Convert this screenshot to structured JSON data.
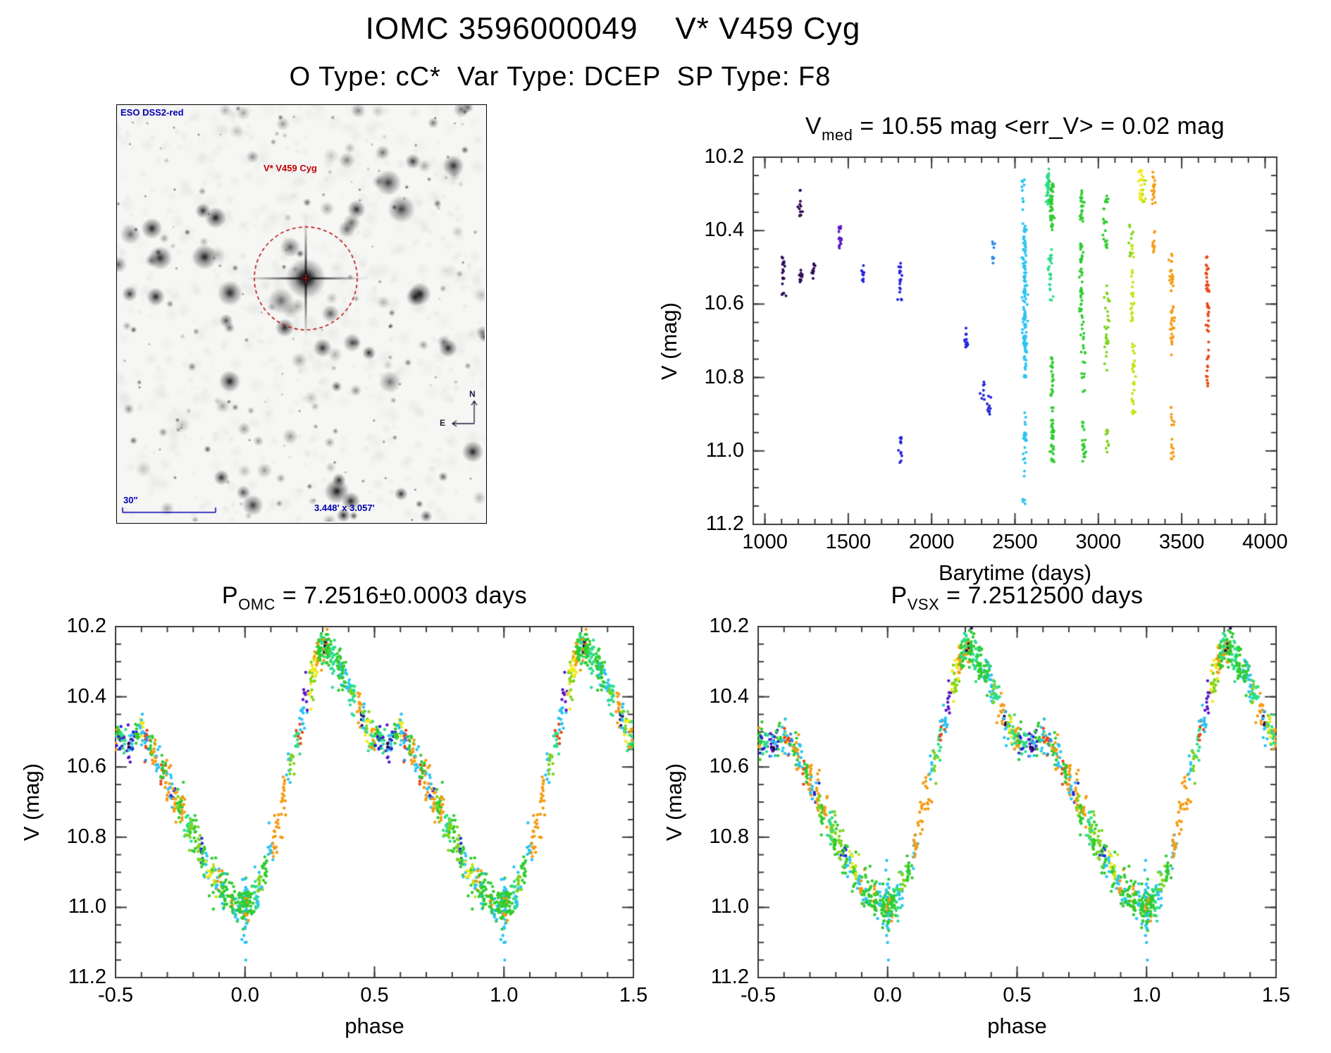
{
  "page": {
    "title": "IOMC 3596000049    V* V459 Cyg",
    "subtitle": "O Type: cC*  Var Type: DCEP  SP Type: F8",
    "background": "#FFFFFF",
    "text_color": "#000000"
  },
  "starfield": {
    "survey_label": "ESO DSS2-red",
    "target_label": "V* V459 Cyg",
    "scale_label": "30\"",
    "fov_label": "3.448' x 3.057'",
    "compass_north": "N",
    "compass_east": "E",
    "label_color": "#0000B0",
    "marker_color": "#BB1111"
  },
  "palette": [
    "#2E0B54",
    "#5A16C8",
    "#2424DC",
    "#2E8BE6",
    "#2BC4F0",
    "#2EDD8C",
    "#2FCC30",
    "#7ED41C",
    "#C3E316",
    "#F2EA1C",
    "#F59B12",
    "#EB4713"
  ],
  "chart_data": [
    {
      "id": "timeseries",
      "type": "scatter",
      "title_parts": [
        [
          "V",
          "n"
        ],
        [
          "med",
          "s"
        ],
        [
          " = 10.55 mag <err_V> = 0.02 mag",
          "n"
        ]
      ],
      "xlabel": "Barytime (days)",
      "ylabel": "V (mag)",
      "xlim": [
        930,
        4070
      ],
      "ylim": [
        10.2,
        11.2
      ],
      "y_inverted_mag_axis": true,
      "xticks": [
        1000,
        1500,
        2000,
        2500,
        3000,
        3500,
        4000
      ],
      "xtick_labels": [
        "1000",
        "1500",
        "2000",
        "2500",
        "3000",
        "3500",
        "4000"
      ],
      "xminor": 100,
      "yticks": [
        10.2,
        10.4,
        10.6,
        10.8,
        11.0,
        11.2
      ],
      "ytick_labels": [
        "10.2",
        "10.4",
        "10.6",
        "10.8",
        "11.0",
        "11.2"
      ],
      "yminor": 0.05,
      "seed": 7,
      "clusters": [
        [
          1110,
          10.47,
          10.58,
          0,
          22
        ],
        [
          1210,
          10.29,
          10.36,
          0,
          12
        ],
        [
          1213,
          10.5,
          10.54,
          0,
          10
        ],
        [
          1290,
          10.49,
          10.54,
          0,
          10
        ],
        [
          1450,
          10.36,
          10.45,
          1,
          14
        ],
        [
          1590,
          10.49,
          10.54,
          2,
          10
        ],
        [
          1810,
          10.48,
          10.59,
          2,
          18
        ],
        [
          1815,
          10.96,
          11.05,
          2,
          12
        ],
        [
          2210,
          10.66,
          10.73,
          2,
          12
        ],
        [
          2310,
          10.81,
          10.86,
          2,
          8
        ],
        [
          2345,
          10.84,
          10.91,
          2,
          10
        ],
        [
          2370,
          10.43,
          10.49,
          3,
          9
        ],
        [
          2553,
          10.24,
          10.35,
          4,
          10
        ],
        [
          2558,
          10.38,
          10.8,
          4,
          130
        ],
        [
          2560,
          10.88,
          11.04,
          4,
          22
        ],
        [
          2556,
          11.05,
          11.16,
          4,
          6
        ],
        [
          2700,
          10.23,
          10.33,
          5,
          36
        ],
        [
          2720,
          10.26,
          10.4,
          6,
          44
        ],
        [
          2712,
          10.45,
          10.6,
          5,
          26
        ],
        [
          2722,
          10.74,
          10.94,
          6,
          30
        ],
        [
          2725,
          10.93,
          11.03,
          6,
          26
        ],
        [
          2902,
          10.28,
          10.38,
          6,
          24
        ],
        [
          2898,
          10.43,
          10.62,
          6,
          40
        ],
        [
          2908,
          10.63,
          10.84,
          6,
          22
        ],
        [
          2912,
          10.92,
          11.03,
          6,
          22
        ],
        [
          3042,
          10.3,
          10.45,
          6,
          22
        ],
        [
          3050,
          10.55,
          10.8,
          7,
          28
        ],
        [
          3055,
          10.93,
          11.04,
          7,
          12
        ],
        [
          3198,
          10.38,
          10.48,
          7,
          12
        ],
        [
          3205,
          10.44,
          10.65,
          8,
          26
        ],
        [
          3210,
          10.7,
          10.9,
          8,
          30
        ],
        [
          3253,
          10.23,
          10.32,
          9,
          20
        ],
        [
          3268,
          10.26,
          10.35,
          8,
          12
        ],
        [
          3330,
          10.24,
          10.34,
          10,
          18
        ],
        [
          3333,
          10.4,
          10.48,
          10,
          10
        ],
        [
          3438,
          10.46,
          10.57,
          10,
          22
        ],
        [
          3444,
          10.6,
          10.74,
          10,
          26
        ],
        [
          3448,
          10.88,
          10.94,
          10,
          8
        ],
        [
          3446,
          10.96,
          11.03,
          10,
          10
        ],
        [
          3652,
          10.47,
          10.58,
          11,
          22
        ],
        [
          3658,
          10.59,
          10.68,
          11,
          16
        ],
        [
          3655,
          10.7,
          10.83,
          11,
          14
        ]
      ]
    },
    {
      "id": "phase_omc",
      "type": "scatter",
      "title_parts": [
        [
          "P",
          "n"
        ],
        [
          "OMC",
          "s"
        ],
        [
          " = 7.2516±0.0003 days",
          "n"
        ]
      ],
      "xlabel": "phase",
      "ylabel": "V (mag)",
      "xlim": [
        -0.5,
        1.5
      ],
      "ylim": [
        10.2,
        11.2
      ],
      "period_days": 7.2516,
      "period_err_days": 0.0003,
      "xticks": [
        -0.5,
        0.0,
        0.5,
        1.0,
        1.5
      ],
      "xtick_labels": [
        "-0.5",
        "0.0",
        "0.5",
        "1.0",
        "1.5"
      ],
      "xminor": 0.1,
      "yticks": [
        10.2,
        10.4,
        10.6,
        10.8,
        11.0,
        11.2
      ],
      "ytick_labels": [
        "10.2",
        "10.4",
        "10.6",
        "10.8",
        "11.0",
        "11.2"
      ],
      "yminor": 0.05,
      "seed": 11,
      "curve": [
        [
          0.0,
          11.0
        ],
        [
          0.02,
          10.985
        ],
        [
          0.05,
          10.95
        ],
        [
          0.08,
          10.89
        ],
        [
          0.12,
          10.78
        ],
        [
          0.16,
          10.64
        ],
        [
          0.2,
          10.52
        ],
        [
          0.24,
          10.4
        ],
        [
          0.27,
          10.31
        ],
        [
          0.3,
          10.255
        ],
        [
          0.32,
          10.26
        ],
        [
          0.34,
          10.29
        ],
        [
          0.36,
          10.315
        ],
        [
          0.4,
          10.37
        ],
        [
          0.44,
          10.44
        ],
        [
          0.48,
          10.5
        ],
        [
          0.52,
          10.53
        ],
        [
          0.56,
          10.535
        ],
        [
          0.59,
          10.5
        ],
        [
          0.62,
          10.52
        ],
        [
          0.66,
          10.58
        ],
        [
          0.7,
          10.64
        ],
        [
          0.74,
          10.7
        ],
        [
          0.78,
          10.77
        ],
        [
          0.82,
          10.83
        ],
        [
          0.86,
          10.89
        ],
        [
          0.9,
          10.94
        ],
        [
          0.94,
          10.97
        ],
        [
          0.97,
          10.99
        ],
        [
          1.0,
          11.0
        ]
      ],
      "groups": [
        [
          0.0,
          6,
          0.05,
          40
        ],
        [
          0.0,
          4,
          0.09,
          16
        ],
        [
          0.01,
          10,
          0.04,
          10
        ],
        [
          0.02,
          6,
          0.04,
          22
        ],
        [
          0.04,
          5,
          0.04,
          14
        ],
        [
          0.05,
          4,
          0.05,
          10
        ],
        [
          0.06,
          7,
          0.04,
          12
        ],
        [
          0.08,
          6,
          0.04,
          16
        ],
        [
          0.1,
          4,
          0.04,
          10
        ],
        [
          0.11,
          10,
          0.05,
          12
        ],
        [
          0.13,
          10,
          0.05,
          10
        ],
        [
          0.15,
          10,
          0.06,
          14
        ],
        [
          0.17,
          4,
          0.04,
          8
        ],
        [
          0.18,
          7,
          0.04,
          10
        ],
        [
          0.2,
          5,
          0.04,
          10
        ],
        [
          0.21,
          11,
          0.03,
          6
        ],
        [
          0.22,
          4,
          0.05,
          12
        ],
        [
          0.235,
          1,
          0.05,
          10
        ],
        [
          0.25,
          9,
          0.05,
          8
        ],
        [
          0.26,
          7,
          0.05,
          16
        ],
        [
          0.27,
          9,
          0.04,
          14
        ],
        [
          0.28,
          10,
          0.04,
          14
        ],
        [
          0.29,
          6,
          0.04,
          26
        ],
        [
          0.3,
          5,
          0.04,
          18
        ],
        [
          0.31,
          10,
          0.04,
          12
        ],
        [
          0.315,
          0,
          0.03,
          7
        ],
        [
          0.32,
          6,
          0.05,
          26
        ],
        [
          0.34,
          5,
          0.05,
          20
        ],
        [
          0.36,
          6,
          0.05,
          22
        ],
        [
          0.375,
          4,
          0.04,
          10
        ],
        [
          0.38,
          6,
          0.04,
          16
        ],
        [
          0.4,
          4,
          0.05,
          12
        ],
        [
          0.41,
          7,
          0.04,
          10
        ],
        [
          0.42,
          5,
          0.04,
          14
        ],
        [
          0.44,
          10,
          0.05,
          12
        ],
        [
          0.45,
          0,
          0.03,
          6
        ],
        [
          0.46,
          4,
          0.05,
          10
        ],
        [
          0.47,
          7,
          0.04,
          8
        ],
        [
          0.48,
          9,
          0.04,
          8
        ],
        [
          0.49,
          5,
          0.05,
          14
        ],
        [
          0.5,
          10,
          0.04,
          10
        ],
        [
          0.51,
          6,
          0.04,
          12
        ],
        [
          0.52,
          2,
          0.04,
          8
        ],
        [
          0.53,
          5,
          0.05,
          12
        ],
        [
          0.55,
          1,
          0.05,
          8
        ],
        [
          0.555,
          0,
          0.03,
          6
        ],
        [
          0.56,
          4,
          0.04,
          8
        ],
        [
          0.57,
          2,
          0.04,
          6
        ],
        [
          0.58,
          6,
          0.04,
          10
        ],
        [
          0.6,
          9,
          0.04,
          8
        ],
        [
          0.6,
          4,
          0.05,
          10
        ],
        [
          0.615,
          11,
          0.04,
          8
        ],
        [
          0.62,
          3,
          0.04,
          6
        ],
        [
          0.64,
          6,
          0.04,
          12
        ],
        [
          0.65,
          10,
          0.05,
          12
        ],
        [
          0.66,
          4,
          0.05,
          10
        ],
        [
          0.68,
          11,
          0.04,
          8
        ],
        [
          0.685,
          6,
          0.04,
          10
        ],
        [
          0.7,
          10,
          0.05,
          14
        ],
        [
          0.71,
          4,
          0.05,
          10
        ],
        [
          0.72,
          2,
          0.03,
          5
        ],
        [
          0.73,
          10,
          0.05,
          12
        ],
        [
          0.74,
          7,
          0.04,
          10
        ],
        [
          0.75,
          6,
          0.05,
          14
        ],
        [
          0.76,
          10,
          0.05,
          10
        ],
        [
          0.78,
          5,
          0.05,
          16
        ],
        [
          0.79,
          7,
          0.05,
          12
        ],
        [
          0.8,
          6,
          0.05,
          14
        ],
        [
          0.82,
          7,
          0.05,
          14
        ],
        [
          0.83,
          2,
          0.04,
          6
        ],
        [
          0.84,
          6,
          0.05,
          12
        ],
        [
          0.85,
          4,
          0.04,
          8
        ],
        [
          0.86,
          9,
          0.04,
          8
        ],
        [
          0.87,
          6,
          0.05,
          12
        ],
        [
          0.88,
          8,
          0.04,
          8
        ],
        [
          0.89,
          4,
          0.04,
          8
        ],
        [
          0.9,
          10,
          0.04,
          8
        ],
        [
          0.91,
          6,
          0.05,
          14
        ],
        [
          0.92,
          4,
          0.04,
          8
        ],
        [
          0.93,
          6,
          0.05,
          16
        ],
        [
          0.95,
          10,
          0.04,
          8
        ],
        [
          0.955,
          6,
          0.05,
          18
        ],
        [
          0.97,
          4,
          0.05,
          10
        ],
        [
          0.98,
          6,
          0.05,
          18
        ]
      ],
      "outliers": [
        [
          0.001,
          11.06,
          4
        ],
        [
          0.0,
          11.1,
          4
        ],
        [
          0.003,
          11.15,
          4
        ],
        [
          0.996,
          11.08,
          4
        ]
      ]
    },
    {
      "id": "phase_vsx",
      "type": "scatter",
      "title_parts": [
        [
          "P",
          "n"
        ],
        [
          "VSX",
          "s"
        ],
        [
          " = 7.2512500 days",
          "n"
        ]
      ],
      "xlabel": "phase",
      "ylabel": "V (mag)",
      "xlim": [
        -0.5,
        1.5
      ],
      "ylim": [
        10.2,
        11.2
      ],
      "period_days": 7.25125,
      "xticks": [
        -0.5,
        0.0,
        0.5,
        1.0,
        1.5
      ],
      "xtick_labels": [
        "-0.5",
        "0.0",
        "0.5",
        "1.0",
        "1.5"
      ],
      "xminor": 0.1,
      "yticks": [
        10.2,
        10.4,
        10.6,
        10.8,
        11.0,
        11.2
      ],
      "ytick_labels": [
        "10.2",
        "10.4",
        "10.6",
        "10.8",
        "11.0",
        "11.2"
      ],
      "yminor": 0.05,
      "seed": 23,
      "data_ref": "phase_omc"
    }
  ]
}
